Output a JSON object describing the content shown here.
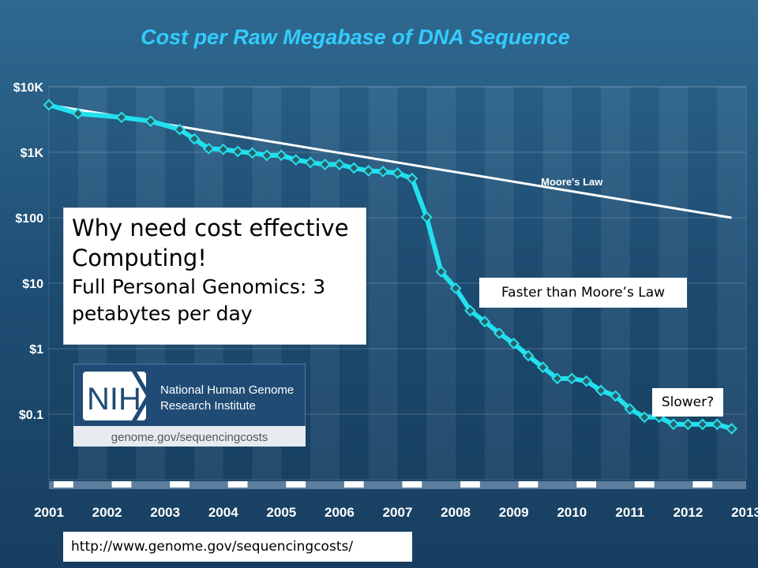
{
  "colors": {
    "background": "#1f4e74",
    "title": "#33ccff",
    "series": "#22e0ee",
    "marker": "#2b5f68",
    "moores_law": "#ffffff"
  },
  "chart_data": {
    "type": "line",
    "title": "Cost per Raw Megabase of DNA Sequence",
    "yscale": "log",
    "ylim": [
      0.01,
      10000
    ],
    "xlim": [
      2001,
      2013
    ],
    "y_tick_values": [
      10000,
      1000,
      100,
      10,
      1,
      0.1
    ],
    "y_tick_labels": [
      "$10K",
      "$1K",
      "$100",
      "$10",
      "$1",
      "$0.1"
    ],
    "x_tick_values": [
      2001,
      2002,
      2003,
      2004,
      2005,
      2006,
      2007,
      2008,
      2009,
      2010,
      2011,
      2012,
      2013
    ],
    "x_tick_labels": [
      "2001",
      "2002",
      "2003",
      "2004",
      "2005",
      "2006",
      "2007",
      "2008",
      "2009",
      "2010",
      "2011",
      "2012",
      "2013"
    ],
    "grid": "alternating vertical bands",
    "series": [
      {
        "name": "",
        "x": [
          2001.0,
          2001.5,
          2002.25,
          2002.75,
          2003.25,
          2003.5,
          2003.75,
          2004.0,
          2004.25,
          2004.5,
          2004.75,
          2005.0,
          2005.25,
          2005.5,
          2005.75,
          2006.0,
          2006.25,
          2006.5,
          2006.75,
          2007.0,
          2007.25,
          2007.5,
          2007.75,
          2008.0,
          2008.25,
          2008.5,
          2008.75,
          2009.0,
          2009.25,
          2009.5,
          2009.75,
          2010.0,
          2010.25,
          2010.5,
          2010.75,
          2011.0,
          2011.25,
          2011.5,
          2011.75,
          2012.0,
          2012.25,
          2012.5,
          2012.75
        ],
        "y": [
          5292,
          3898,
          3413,
          2987,
          2230,
          1598,
          1135,
          1107,
          1028,
          974,
          897,
          898,
          766,
          699,
          651,
          652,
          574,
          521,
          507,
          481,
          397,
          102,
          15.0,
          8.36,
          3.81,
          2.59,
          1.72,
          1.2,
          0.78,
          0.52,
          0.35,
          0.35,
          0.32,
          0.23,
          0.19,
          0.12,
          0.09,
          0.09,
          0.07,
          0.07,
          0.07,
          0.07,
          0.06
        ]
      },
      {
        "name": "Moore's Law",
        "x": [
          2001.0,
          2012.75
        ],
        "y": [
          5292,
          100
        ]
      }
    ],
    "annotations": [
      "Moore's Law"
    ]
  },
  "callouts": {
    "why_line1": "Why need cost effective",
    "why_line2": "Computing!",
    "why_line3": "Full Personal Genomics: 3",
    "why_line4": "petabytes per day",
    "faster": "Faster than Moore’s Law",
    "slower": "Slower?",
    "url": "http://www.genome.gov/sequencingcosts/"
  },
  "nih": {
    "mark": "NIH",
    "name_line1": "National Human Genome",
    "name_line2": "Research Institute",
    "url": "genome.gov/sequencingcosts"
  }
}
